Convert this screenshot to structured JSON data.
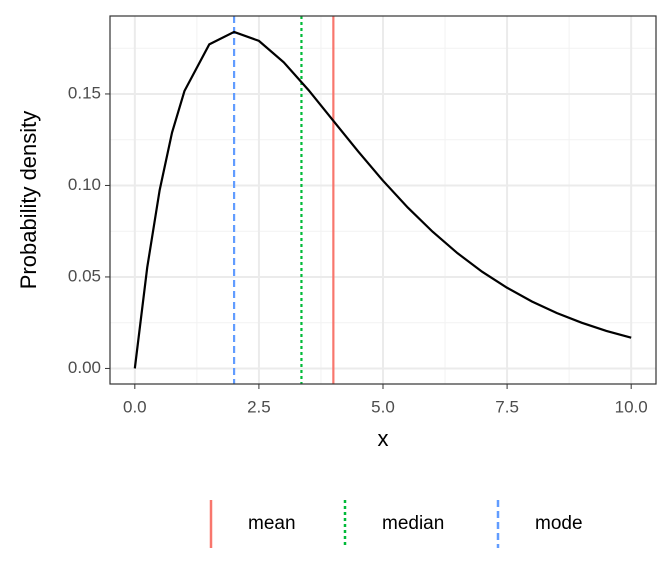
{
  "chart_data": {
    "type": "line",
    "x_label": "x",
    "y_label": "Probability density",
    "x": [
      0,
      0.25,
      0.5,
      0.75,
      1,
      1.5,
      2,
      2.5,
      3,
      3.5,
      4,
      4.5,
      5,
      5.5,
      6,
      6.5,
      7,
      7.5,
      8,
      8.5,
      9,
      9.5,
      10
    ],
    "series": [
      {
        "color": "#000000",
        "values": [
          0,
          0.0552,
          0.0974,
          0.1289,
          0.1516,
          0.1771,
          0.1839,
          0.179,
          0.1673,
          0.1521,
          0.1353,
          0.1186,
          0.1026,
          0.0879,
          0.0747,
          0.063,
          0.0528,
          0.0441,
          0.0366,
          0.0303,
          0.025,
          0.0205,
          0.0168
        ]
      }
    ],
    "vlines": [
      {
        "name": "mean",
        "value": 4,
        "color": "#F8766D",
        "dash": "solid"
      },
      {
        "name": "median",
        "value": 3.357,
        "color": "#00BA38",
        "dash": "dotted"
      },
      {
        "name": "mode",
        "value": 2,
        "color": "#619CFF",
        "dash": "dashed"
      }
    ],
    "xlim": [
      -0.5,
      10.5
    ],
    "ylim": [
      -0.0085,
      0.1926
    ],
    "xticks": [
      {
        "value": 0,
        "label": "0.0"
      },
      {
        "value": 2.5,
        "label": "2.5"
      },
      {
        "value": 5,
        "label": "5.0"
      },
      {
        "value": 7.5,
        "label": "7.5"
      },
      {
        "value": 10,
        "label": "10.0"
      }
    ],
    "yticks": [
      {
        "value": 0,
        "label": "0.00"
      },
      {
        "value": 0.05,
        "label": "0.05"
      },
      {
        "value": 0.1,
        "label": "0.10"
      },
      {
        "value": 0.15,
        "label": "0.15"
      }
    ],
    "x_minor_grid": [
      1.25,
      3.75,
      6.25,
      8.75
    ],
    "y_minor_grid": [
      0.025,
      0.075,
      0.125,
      0.175
    ],
    "grid": true,
    "legend": "bottom"
  }
}
